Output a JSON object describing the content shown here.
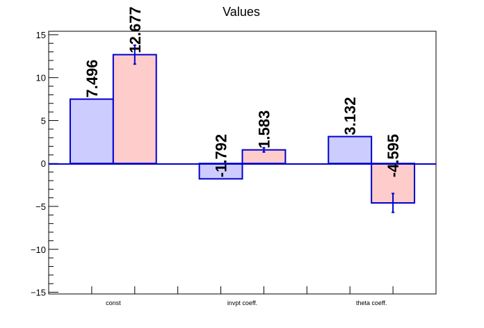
{
  "chart_data": {
    "type": "bar",
    "title": "Values",
    "xlabel": "",
    "ylabel": "",
    "categories": [
      "const",
      "invpt coeff.",
      "theta coeff."
    ],
    "ylim": [
      -15.2,
      15.4
    ],
    "yticks": [
      -15,
      -10,
      -5,
      0,
      5,
      10,
      15
    ],
    "grid": false,
    "series": [
      {
        "color_fill": "#ccccff",
        "color_edge": "#0000cc",
        "values": [
          7.496,
          -1.792,
          3.132
        ],
        "value_labels": [
          "7.496",
          "-1.792",
          "3.132"
        ]
      },
      {
        "color_fill": "#ffcccc",
        "color_edge": "#0000cc",
        "values": [
          12.677,
          1.583,
          -4.595
        ],
        "value_labels": [
          "12.677",
          "1.583",
          "-4.595"
        ],
        "errors": [
          1.1,
          0.25,
          1.1
        ]
      }
    ]
  }
}
